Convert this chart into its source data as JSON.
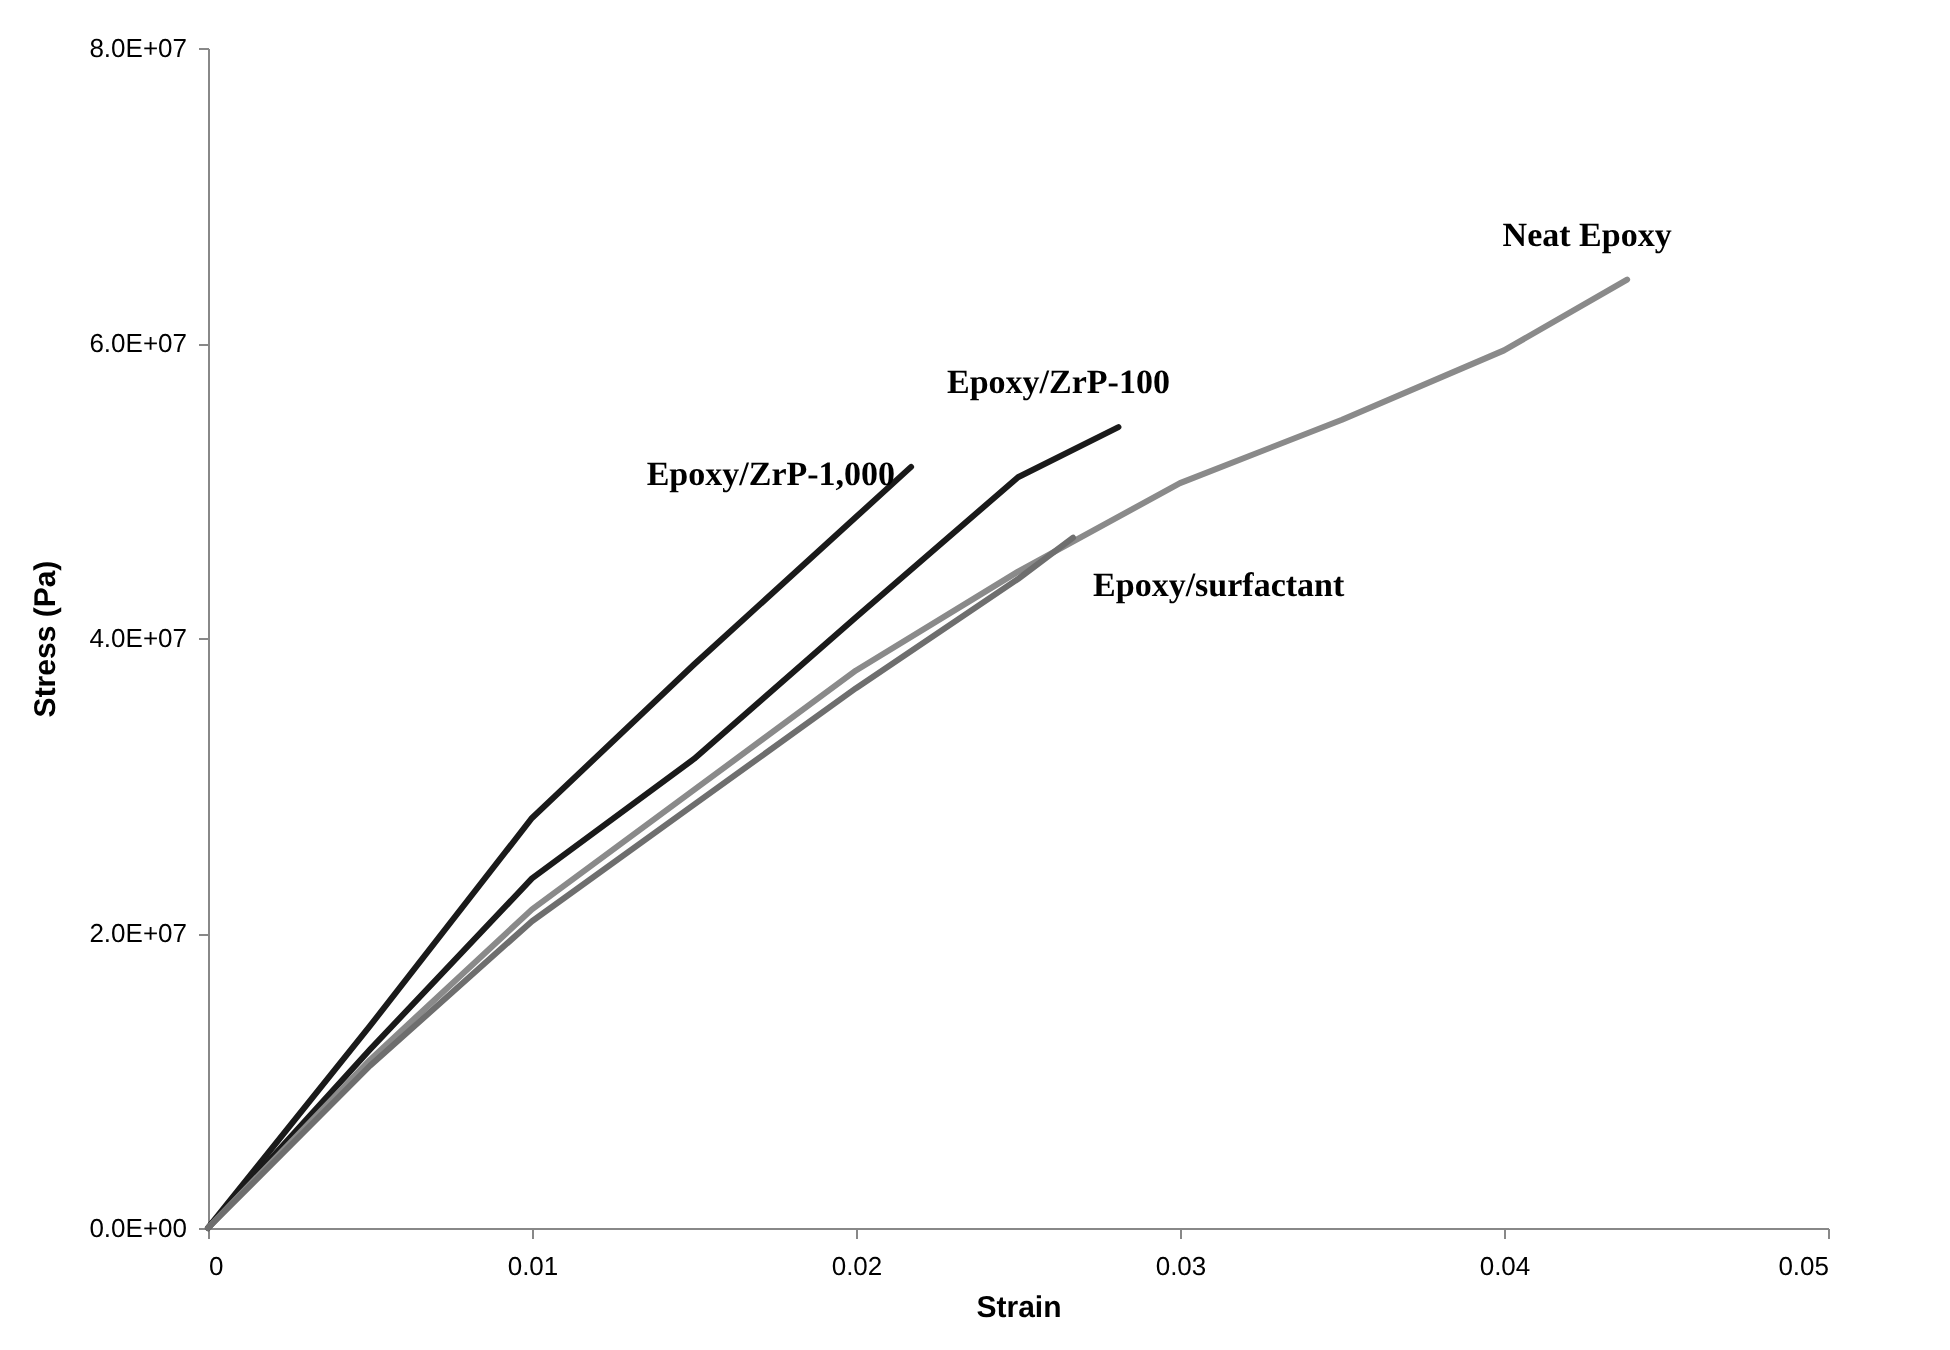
{
  "chart_data": {
    "type": "line",
    "xlabel": "Strain",
    "ylabel": "Stress (Pa)",
    "xlim": [
      0,
      0.05
    ],
    "xticks": [
      0,
      0.01,
      0.02,
      0.03,
      0.04,
      0.05
    ],
    "ylim": [
      0,
      80000000
    ],
    "yticks": [
      {
        "value": 0,
        "label": "0.0E+00"
      },
      {
        "value": 20000000,
        "label": "2.0E+07"
      },
      {
        "value": 40000000,
        "label": "4.0E+07"
      },
      {
        "value": 60000000,
        "label": "6.0E+07"
      },
      {
        "value": 80000000,
        "label": "8.0E+07"
      }
    ],
    "grid": false,
    "marker": "none",
    "line_style": "solid",
    "series": [
      {
        "name": "Epoxy/ZrP-1,000",
        "color": "#1a1a1a",
        "x": [
          0,
          0.005,
          0.01,
          0.015,
          0.02,
          0.0217
        ],
        "values": [
          0,
          13700000,
          27800000,
          38200000,
          48200000,
          51600000
        ]
      },
      {
        "name": "Epoxy/ZrP-100",
        "color": "#1a1a1a",
        "x": [
          0,
          0.005,
          0.01,
          0.015,
          0.02,
          0.025,
          0.0281
        ],
        "values": [
          0,
          12100000,
          23700000,
          31800000,
          41400000,
          50900000,
          54300000
        ]
      },
      {
        "name": "Neat Epoxy",
        "color": "#8a8a8a",
        "x": [
          0,
          0.005,
          0.01,
          0.015,
          0.02,
          0.025,
          0.03,
          0.035,
          0.04,
          0.0438
        ],
        "values": [
          0,
          11400000,
          21600000,
          29700000,
          37800000,
          44500000,
          50500000,
          54800000,
          59500000,
          64300000
        ]
      },
      {
        "name": "Epoxy/surfactant",
        "color": "#6e6e6e",
        "x": [
          0,
          0.005,
          0.01,
          0.015,
          0.02,
          0.025,
          0.0267
        ],
        "values": [
          0,
          11000000,
          20800000,
          28700000,
          36600000,
          44000000,
          46800000
        ]
      }
    ]
  }
}
